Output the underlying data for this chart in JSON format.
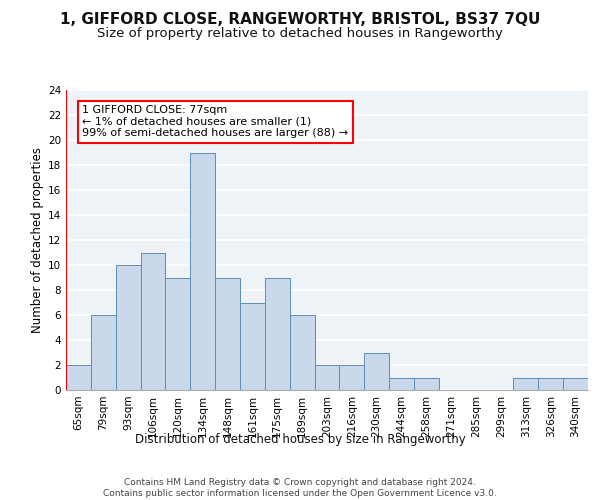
{
  "title1": "1, GIFFORD CLOSE, RANGEWORTHY, BRISTOL, BS37 7QU",
  "title2": "Size of property relative to detached houses in Rangeworthy",
  "xlabel": "Distribution of detached houses by size in Rangeworthy",
  "ylabel": "Number of detached properties",
  "categories": [
    "65sqm",
    "79sqm",
    "93sqm",
    "106sqm",
    "120sqm",
    "134sqm",
    "148sqm",
    "161sqm",
    "175sqm",
    "189sqm",
    "203sqm",
    "216sqm",
    "230sqm",
    "244sqm",
    "258sqm",
    "271sqm",
    "285sqm",
    "299sqm",
    "313sqm",
    "326sqm",
    "340sqm"
  ],
  "values": [
    2,
    6,
    10,
    11,
    9,
    19,
    9,
    7,
    9,
    6,
    2,
    2,
    3,
    1,
    1,
    0,
    0,
    0,
    1,
    1,
    1
  ],
  "bar_color": "#c9d9eb",
  "bar_edge_color": "#5b8db8",
  "annotation_box_text": "1 GIFFORD CLOSE: 77sqm\n← 1% of detached houses are smaller (1)\n99% of semi-detached houses are larger (88) →",
  "ylim": [
    0,
    24
  ],
  "yticks": [
    0,
    2,
    4,
    6,
    8,
    10,
    12,
    14,
    16,
    18,
    20,
    22,
    24
  ],
  "footnote": "Contains HM Land Registry data © Crown copyright and database right 2024.\nContains public sector information licensed under the Open Government Licence v3.0.",
  "bg_color": "#eef3f8",
  "grid_color": "#ffffff",
  "title1_fontsize": 11,
  "title2_fontsize": 9.5,
  "axis_label_fontsize": 8.5,
  "tick_fontsize": 7.5,
  "annotation_fontsize": 8,
  "footnote_fontsize": 6.5
}
